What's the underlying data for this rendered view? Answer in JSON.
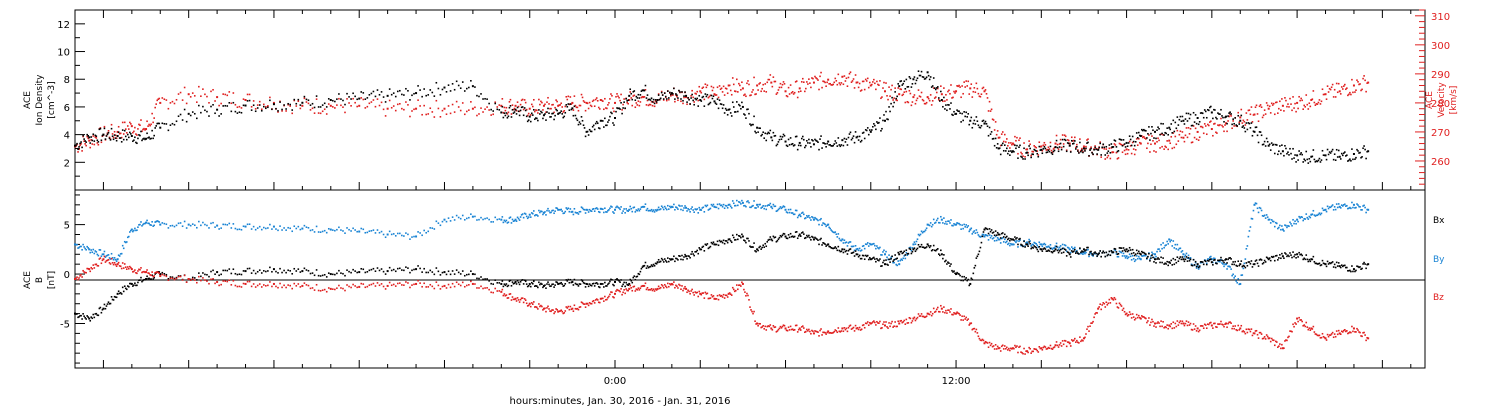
{
  "chart_data": [
    {
      "type": "scatter",
      "panel": "top",
      "ylabel_left": [
        "ACE",
        "Ion Density",
        "[cm^-3]"
      ],
      "ylabel_right": [
        "ACE",
        "Velocity",
        "[km/s]"
      ],
      "y_left_ticks": [
        "2",
        "4",
        "6",
        "8",
        "10",
        "12"
      ],
      "ylim_left": [
        0,
        13
      ],
      "y_right_ticks": [
        "260",
        "270",
        "280",
        "290",
        "300",
        "310"
      ],
      "ylim_right": [
        250,
        312
      ],
      "x_hours_range": [
        -19,
        28.5
      ],
      "series": [
        {
          "name": "Ion Density",
          "axis": "left",
          "color": "#000000",
          "x": [
            -19,
            -18.5,
            -18,
            -17.5,
            -17,
            -16.5,
            -16,
            -15,
            -14,
            -13,
            -12,
            -11,
            -10,
            -9,
            -8,
            -7,
            -6,
            -5,
            -4,
            -3.5,
            -3,
            -2.5,
            -2,
            -1.5,
            -1,
            -0.5,
            0,
            0.5,
            1,
            1.5,
            2,
            2.5,
            3,
            3.5,
            4,
            4.5,
            5,
            5.5,
            6,
            6.5,
            7,
            7.5,
            8,
            8.5,
            9,
            9.5,
            10,
            10.5,
            11,
            11.5,
            12,
            12.5,
            13,
            13.5,
            14,
            14.5,
            15,
            15.5,
            16,
            16.5,
            17,
            17.5,
            18,
            18.5,
            19,
            19.5,
            20,
            20.5,
            21,
            21.5,
            22,
            22.5,
            23,
            23.5,
            24,
            24.5,
            25,
            25.5,
            26,
            26.5
          ],
          "y": [
            3.2,
            3.8,
            4.0,
            3.9,
            3.9,
            3.7,
            4.5,
            5.5,
            5.8,
            6.1,
            6.2,
            6.3,
            6.5,
            6.6,
            6.8,
            7.0,
            7.4,
            7.5,
            5.6,
            5.8,
            5.3,
            5.4,
            5.5,
            5.9,
            4.2,
            5.0,
            5.2,
            6.8,
            7.2,
            6.5,
            7.0,
            6.8,
            6.5,
            6.4,
            5.8,
            6.0,
            4.5,
            3.8,
            3.5,
            3.4,
            3.3,
            3.5,
            3.6,
            3.8,
            4.2,
            5.0,
            7.5,
            8.0,
            8.5,
            6.5,
            5.5,
            5.0,
            4.8,
            3.0,
            2.8,
            2.7,
            2.9,
            3.1,
            3.2,
            3.0,
            2.9,
            3.1,
            3.4,
            3.9,
            4.2,
            4.5,
            5.0,
            5.2,
            5.6,
            5.3,
            5.0,
            4.2,
            3.2,
            2.8,
            2.5,
            2.4,
            2.5,
            2.4,
            2.6,
            2.8
          ]
        },
        {
          "name": "Velocity",
          "axis": "right",
          "color": "#e02020",
          "x": [
            -19,
            -18.5,
            -18,
            -17.5,
            -17,
            -16.5,
            -16,
            -15,
            -14,
            -13,
            -12,
            -11,
            -10,
            -9,
            -8,
            -7,
            -6,
            -5,
            -4,
            -3.5,
            -3,
            -2.5,
            -2,
            -1.5,
            -1,
            -0.5,
            0,
            0.5,
            1,
            1.5,
            2,
            2.5,
            3,
            3.5,
            4,
            4.5,
            5,
            5.5,
            6,
            6.5,
            7,
            7.5,
            8,
            8.5,
            9,
            9.5,
            10,
            10.5,
            11,
            11.5,
            12,
            12.5,
            13,
            13.5,
            14,
            14.5,
            15,
            15.5,
            16,
            16.5,
            17,
            17.5,
            18,
            18.5,
            19,
            19.5,
            20,
            20.5,
            21,
            21.5,
            22,
            22.5,
            23,
            23.5,
            24,
            24.5,
            25,
            25.5,
            26,
            26.5
          ],
          "y": [
            265,
            267,
            269,
            270,
            272,
            271,
            280,
            283,
            282,
            281,
            280,
            279,
            279,
            279,
            278,
            278,
            278,
            278,
            279,
            279,
            278,
            279,
            279,
            280,
            280,
            281,
            280,
            281,
            282,
            281,
            283,
            282,
            284,
            283,
            286,
            285,
            286,
            287,
            284,
            285,
            287,
            288,
            289,
            287,
            286,
            284,
            283,
            282,
            282,
            283,
            284,
            285,
            284,
            268,
            266,
            264,
            265,
            266,
            266,
            265,
            264,
            263,
            264,
            266,
            266,
            267,
            268,
            270,
            271,
            273,
            275,
            276,
            278,
            279,
            280,
            281,
            283,
            284,
            286,
            287
          ]
        }
      ]
    },
    {
      "type": "scatter",
      "panel": "bottom",
      "ylabel_left": [
        "ACE",
        "B",
        "[nT]"
      ],
      "y_left_ticks": [
        "-5",
        "0",
        "5"
      ],
      "ylim_left": [
        -9.5,
        8.5
      ],
      "x_hours_range": [
        -19,
        28.5
      ],
      "legend": [
        "Bx",
        "By",
        "Bz"
      ],
      "series": [
        {
          "name": "Bx",
          "color": "#000000",
          "x": [
            -19,
            -18.5,
            -18,
            -17.5,
            -17,
            -16.5,
            -16,
            -15,
            -14,
            -13,
            -12,
            -11,
            -10,
            -9,
            -8,
            -7,
            -6,
            -5,
            -4,
            -3.5,
            -3,
            -2.5,
            -2,
            -1.5,
            -1,
            -0.5,
            0,
            0.5,
            1,
            1.5,
            2,
            2.5,
            3,
            3.5,
            4,
            4.5,
            5,
            5.5,
            6,
            6.5,
            7,
            7.5,
            8,
            8.5,
            9,
            9.5,
            10,
            10.5,
            11,
            11.5,
            12,
            12.5,
            13,
            13.5,
            14,
            14.5,
            15,
            15.5,
            16,
            16.5,
            17,
            17.5,
            18,
            18.5,
            19,
            19.5,
            20,
            20.5,
            21,
            21.5,
            22,
            22.5,
            23,
            23.5,
            24,
            24.5,
            25,
            25.5,
            26,
            26.5
          ],
          "y": [
            -4.0,
            -4.5,
            -3.5,
            -2.0,
            -1.0,
            -0.5,
            0.0,
            -0.5,
            0.2,
            0.3,
            0.5,
            0.3,
            0.0,
            0.2,
            0.3,
            0.5,
            0.2,
            0.0,
            -1.0,
            -0.8,
            -1.0,
            -1.2,
            -1.0,
            -0.8,
            -1.0,
            -1.0,
            -0.8,
            -1.0,
            0.8,
            1.2,
            1.5,
            1.8,
            2.5,
            3.0,
            3.5,
            3.8,
            2.5,
            3.5,
            3.8,
            4.0,
            3.5,
            3.0,
            2.5,
            2.0,
            1.5,
            1.0,
            2.0,
            2.5,
            3.0,
            2.0,
            0.0,
            -1.0,
            4.5,
            4.0,
            3.5,
            3.0,
            2.5,
            2.5,
            2.0,
            2.5,
            2.0,
            2.2,
            2.5,
            2.0,
            1.5,
            1.2,
            1.5,
            1.0,
            1.2,
            1.5,
            1.0,
            1.0,
            1.5,
            1.8,
            2.0,
            1.5,
            1.0,
            0.8,
            0.5,
            1.0
          ]
        },
        {
          "name": "By",
          "color": "#1a84d4",
          "x": [
            -19,
            -18.5,
            -18,
            -17.5,
            -17,
            -16.5,
            -16,
            -15,
            -14,
            -13,
            -12,
            -11,
            -10,
            -9,
            -8,
            -7,
            -6,
            -5,
            -4,
            -3.5,
            -3,
            -2.5,
            -2,
            -1.5,
            -1,
            -0.5,
            0,
            0.5,
            1,
            1.5,
            2,
            2.5,
            3,
            3.5,
            4,
            4.5,
            5,
            5.5,
            6,
            6.5,
            7,
            7.5,
            8,
            8.5,
            9,
            9.5,
            10,
            10.5,
            11,
            11.5,
            12,
            12.5,
            13,
            13.5,
            14,
            14.5,
            15,
            15.5,
            16,
            16.5,
            17,
            17.5,
            18,
            18.5,
            19,
            19.5,
            20,
            20.5,
            21,
            21.5,
            22,
            22.5,
            23,
            23.5,
            24,
            24.5,
            25,
            25.5,
            26,
            26.5
          ],
          "y": [
            3.0,
            2.5,
            2.0,
            1.5,
            4.5,
            5.2,
            5.0,
            5.0,
            4.9,
            4.8,
            4.8,
            4.6,
            4.5,
            4.3,
            4.0,
            3.8,
            5.5,
            5.8,
            5.5,
            5.5,
            6.0,
            6.2,
            6.5,
            6.3,
            6.5,
            6.6,
            6.5,
            6.5,
            6.8,
            6.5,
            6.8,
            6.7,
            6.5,
            6.8,
            7.0,
            7.2,
            7.0,
            6.8,
            6.5,
            6.0,
            5.5,
            5.0,
            3.5,
            2.5,
            3.0,
            2.0,
            1.0,
            3.0,
            5.0,
            5.5,
            5.0,
            4.5,
            3.8,
            3.5,
            3.0,
            3.2,
            3.0,
            2.8,
            2.5,
            2.2,
            2.0,
            2.2,
            1.8,
            1.5,
            2.0,
            3.5,
            2.0,
            0.8,
            1.5,
            1.0,
            -1.0,
            7.0,
            5.5,
            4.5,
            5.5,
            6.0,
            6.5,
            6.8,
            7.0,
            6.5
          ]
        },
        {
          "name": "Bz",
          "color": "#e02020",
          "x": [
            -19,
            -18.5,
            -18,
            -17.5,
            -17,
            -16.5,
            -16,
            -15,
            -14,
            -13,
            -12,
            -11,
            -10,
            -9,
            -8,
            -7,
            -6,
            -5,
            -4,
            -3.5,
            -3,
            -2.5,
            -2,
            -1.5,
            -1,
            -0.5,
            0,
            0.5,
            1,
            1.5,
            2,
            2.5,
            3,
            3.5,
            4,
            4.5,
            5,
            5.5,
            6,
            6.5,
            7,
            7.5,
            8,
            8.5,
            9,
            9.5,
            10,
            10.5,
            11,
            11.5,
            12,
            12.5,
            13,
            13.5,
            14,
            14.5,
            15,
            15.5,
            16,
            16.5,
            17,
            17.5,
            18,
            18.5,
            19,
            19.5,
            20,
            20.5,
            21,
            21.5,
            22,
            22.5,
            23,
            23.5,
            24,
            24.5,
            25,
            25.5,
            26,
            26.5
          ],
          "y": [
            -0.5,
            0.5,
            1.5,
            1.0,
            0.5,
            0.2,
            -0.2,
            -0.5,
            -0.8,
            -1.0,
            -1.0,
            -1.2,
            -1.5,
            -1.3,
            -1.2,
            -1.0,
            -1.2,
            -1.0,
            -1.8,
            -2.5,
            -3.0,
            -3.5,
            -3.8,
            -3.5,
            -3.0,
            -2.5,
            -2.0,
            -1.5,
            -1.2,
            -1.5,
            -1.0,
            -1.5,
            -2.0,
            -2.5,
            -2.0,
            -1.0,
            -5.0,
            -5.5,
            -5.5,
            -5.5,
            -6.0,
            -5.8,
            -5.5,
            -5.5,
            -5.0,
            -5.2,
            -5.0,
            -4.5,
            -4.0,
            -3.5,
            -4.0,
            -5.0,
            -7.0,
            -7.5,
            -7.5,
            -7.8,
            -7.5,
            -7.2,
            -7.0,
            -6.5,
            -3.5,
            -2.5,
            -4.0,
            -4.5,
            -5.0,
            -5.2,
            -5.0,
            -5.5,
            -5.2,
            -5.0,
            -5.5,
            -6.0,
            -6.5,
            -7.5,
            -4.5,
            -5.5,
            -6.5,
            -6.0,
            -5.5,
            -6.5
          ]
        }
      ]
    }
  ],
  "x_axis": {
    "tick_labels": [
      {
        "hour": 0,
        "label": "0:00"
      },
      {
        "hour": 12,
        "label": "12:00"
      }
    ],
    "label": "hours:minutes, Jan. 30, 2016 - Jan. 31, 2016"
  },
  "legend_labels": {
    "bx": "Bx",
    "by": "By",
    "bz": "Bz"
  },
  "colors": {
    "black": "#000000",
    "blue": "#1a84d4",
    "red": "#e02020"
  }
}
